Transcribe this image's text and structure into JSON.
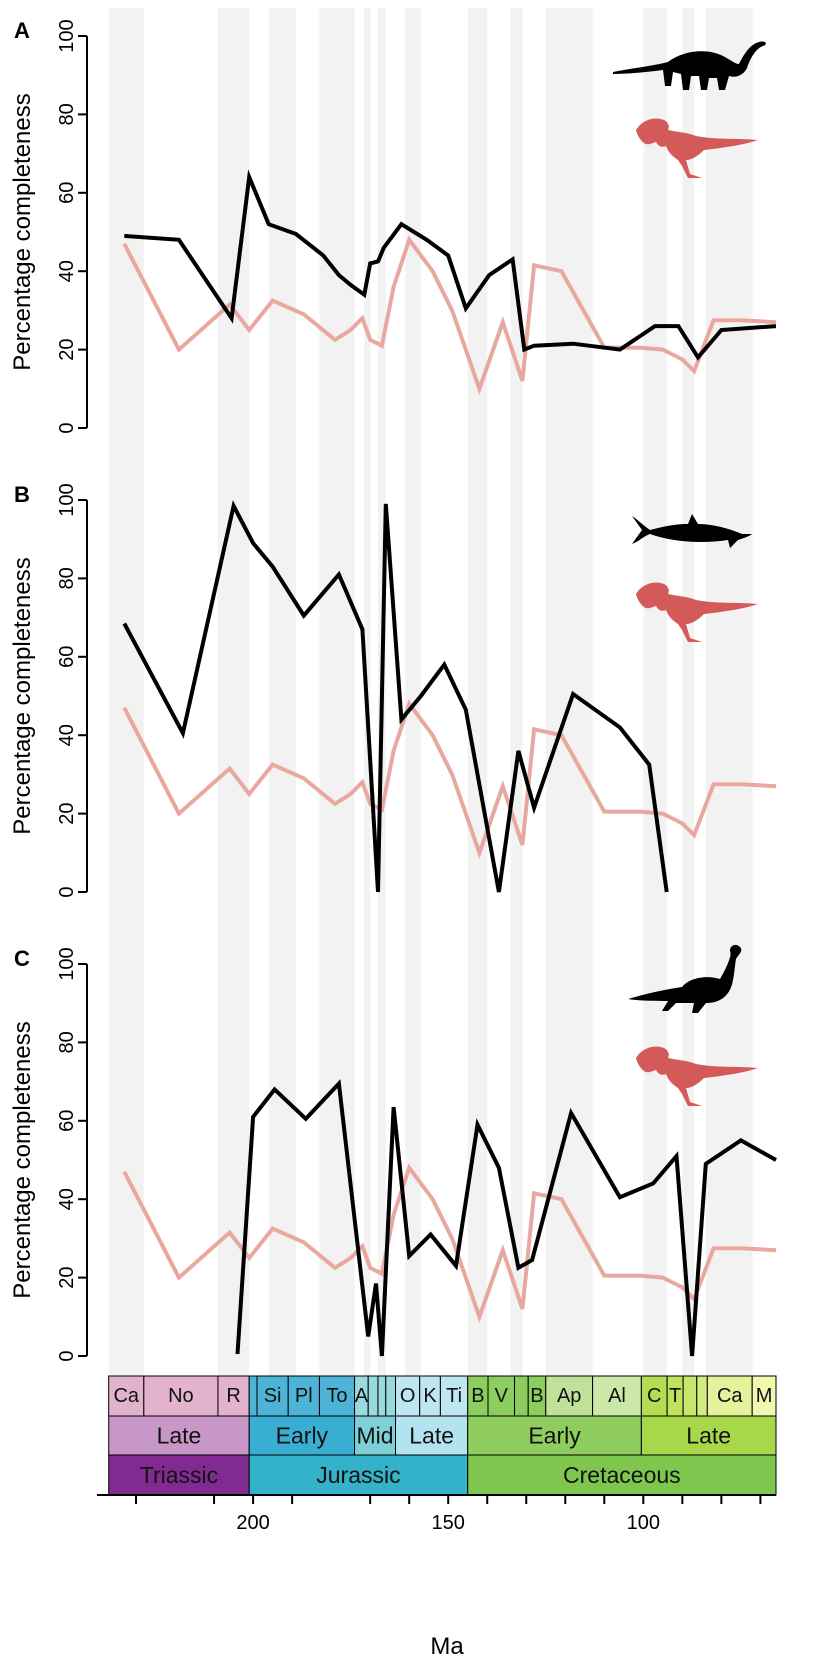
{
  "chart_data": [
    {
      "type": "line",
      "panel_label": "A",
      "ylabel": "Percentage completeness",
      "ylim": [
        0,
        100
      ],
      "yticks": [
        0,
        20,
        40,
        60,
        80,
        100
      ],
      "xlim": [
        240,
        66
      ],
      "series": [
        {
          "color": "#000000",
          "icon": "sauropod-silhouette-icon",
          "x": [
            233,
            219,
            205.5,
            201,
            196,
            189,
            182,
            178,
            175,
            171.5,
            170,
            168,
            166.5,
            162,
            155.5,
            150,
            145.5,
            139.5,
            133.5,
            130.5,
            128,
            118,
            106,
            97,
            91,
            86,
            80,
            66
          ],
          "y": [
            49,
            48,
            28,
            64,
            52,
            49.5,
            44,
            39,
            36.5,
            34,
            42,
            42.5,
            46,
            52,
            48,
            44,
            30.5,
            39,
            43,
            20,
            21,
            21.5,
            20,
            26,
            26,
            18,
            25,
            26
          ]
        },
        {
          "color": "#e8a8a0",
          "icon": "theropod-silhouette-icon",
          "x": [
            233,
            219,
            206,
            201,
            195,
            187,
            179,
            175,
            172,
            170,
            167,
            164,
            160,
            154,
            149,
            142,
            136,
            131,
            128,
            121,
            110,
            101,
            95,
            90,
            87,
            82,
            75,
            66
          ],
          "y": [
            47,
            20,
            31.5,
            25,
            32.5,
            29,
            22.5,
            25,
            28,
            22.5,
            21,
            36,
            48,
            40,
            30,
            10,
            27,
            12,
            41.5,
            40,
            20.5,
            20.5,
            20,
            17.5,
            14.5,
            27.5,
            27.5,
            27
          ]
        }
      ]
    },
    {
      "type": "line",
      "panel_label": "B",
      "ylabel": "Percentage completeness",
      "ylim": [
        0,
        100
      ],
      "yticks": [
        0,
        20,
        40,
        60,
        80,
        100
      ],
      "xlim": [
        240,
        66
      ],
      "series": [
        {
          "color": "#000000",
          "icon": "ichthyosaur-silhouette-icon",
          "x": [
            233,
            218,
            205,
            200,
            195,
            187,
            178,
            172,
            168,
            166,
            162,
            157,
            151,
            145.5,
            137,
            132,
            128,
            118,
            106,
            98.5,
            94
          ],
          "y": [
            68.5,
            40.5,
            98.5,
            89,
            83,
            70.5,
            81,
            67,
            0,
            99,
            44,
            50,
            58,
            46.5,
            0,
            36,
            21.5,
            50.5,
            42,
            32.5,
            0
          ]
        },
        {
          "color": "#e8a8a0",
          "icon": "theropod-silhouette-icon",
          "x": [
            233,
            219,
            206,
            201,
            195,
            187,
            179,
            175,
            172,
            170,
            167,
            164,
            160,
            154,
            149,
            142,
            136,
            131,
            128,
            121,
            110,
            101,
            95,
            90,
            87,
            82,
            75,
            66
          ],
          "y": [
            47,
            20,
            31.5,
            25,
            32.5,
            29,
            22.5,
            25,
            28,
            22.5,
            21,
            36,
            48,
            40,
            30,
            10,
            27,
            12,
            41.5,
            40,
            20.5,
            20.5,
            20,
            17.5,
            14.5,
            27.5,
            27.5,
            27
          ]
        }
      ]
    },
    {
      "type": "line",
      "panel_label": "C",
      "ylabel": "Percentage completeness",
      "ylim": [
        0,
        100
      ],
      "yticks": [
        0,
        20,
        40,
        60,
        80,
        100
      ],
      "xlim": [
        240,
        66
      ],
      "series": [
        {
          "color": "#000000",
          "icon": "plesiosaur-silhouette-icon",
          "x": [
            204,
            200,
            194.5,
            186.5,
            178,
            170.5,
            168.5,
            167,
            164,
            160,
            154.5,
            148,
            142.5,
            137,
            132,
            128.5,
            118.5,
            106,
            97.5,
            91.5,
            87.5,
            84,
            75,
            66
          ],
          "y": [
            0.5,
            61,
            68,
            60.5,
            69.5,
            5,
            18.5,
            0,
            63.5,
            25.5,
            31,
            23,
            59,
            48,
            22.5,
            24.5,
            62,
            40.5,
            44,
            51,
            0,
            49,
            55,
            50
          ]
        },
        {
          "color": "#e8a8a0",
          "icon": "theropod-silhouette-icon",
          "x": [
            233,
            219,
            206,
            201,
            195,
            187,
            179,
            175,
            172,
            170,
            167,
            164,
            160,
            154,
            149,
            142,
            136,
            131,
            128,
            121,
            110,
            101,
            95,
            90,
            87,
            82,
            75,
            66
          ],
          "y": [
            47,
            20,
            31.5,
            25,
            32.5,
            29,
            22.5,
            25,
            28,
            22.5,
            21,
            36,
            48,
            40,
            30,
            10,
            27,
            12,
            41.5,
            40,
            20.5,
            20.5,
            20,
            17.5,
            14.5,
            27.5,
            27.5,
            27
          ]
        }
      ]
    }
  ],
  "xaxis": {
    "title": "Ma",
    "ticks": [
      200,
      150,
      100
    ],
    "minor_ticks": [
      230,
      210,
      190,
      170,
      160,
      140,
      130,
      120,
      110,
      90,
      80,
      70
    ]
  },
  "background_bands": [
    [
      237,
      228
    ],
    [
      209,
      201
    ],
    [
      196,
      189
    ],
    [
      183,
      174
    ],
    [
      171.5,
      170
    ],
    [
      168,
      166
    ],
    [
      161,
      157
    ],
    [
      145,
      140
    ],
    [
      134,
      131
    ],
    [
      125,
      113
    ],
    [
      100,
      94
    ],
    [
      90,
      87
    ],
    [
      84,
      72
    ]
  ],
  "timescale": {
    "stages": [
      {
        "label": "Ca",
        "start": 237,
        "end": 228,
        "color": "#e3b3ce"
      },
      {
        "label": "No",
        "start": 228,
        "end": 209,
        "color": "#e3b3ce"
      },
      {
        "label": "R",
        "start": 209,
        "end": 201,
        "color": "#e3b3ce"
      },
      {
        "label": "",
        "start": 201,
        "end": 199,
        "color": "#4db4d7"
      },
      {
        "label": "Si",
        "start": 199,
        "end": 191,
        "color": "#4db4d7"
      },
      {
        "label": "Pl",
        "start": 191,
        "end": 183,
        "color": "#4db4d7"
      },
      {
        "label": "To",
        "start": 183,
        "end": 174,
        "color": "#4db4d7"
      },
      {
        "label": "A",
        "start": 174,
        "end": 170.5,
        "color": "#9ad9dd"
      },
      {
        "label": "",
        "start": 170.5,
        "end": 168,
        "color": "#9ad9dd"
      },
      {
        "label": "",
        "start": 168,
        "end": 166,
        "color": "#9ad9dd"
      },
      {
        "label": "",
        "start": 166,
        "end": 163.5,
        "color": "#9ad9dd"
      },
      {
        "label": "O",
        "start": 163.5,
        "end": 157.3,
        "color": "#bfe7f1"
      },
      {
        "label": "K",
        "start": 157.3,
        "end": 152,
        "color": "#bfe7f1"
      },
      {
        "label": "Ti",
        "start": 152,
        "end": 145,
        "color": "#bfe7f1"
      },
      {
        "label": "B",
        "start": 145,
        "end": 139.8,
        "color": "#8ccd60"
      },
      {
        "label": "V",
        "start": 139.8,
        "end": 133,
        "color": "#8ccd60"
      },
      {
        "label": "",
        "start": 133,
        "end": 129.5,
        "color": "#8ccd60"
      },
      {
        "label": "B",
        "start": 129.5,
        "end": 125,
        "color": "#8ccd60"
      },
      {
        "label": "Ap",
        "start": 125,
        "end": 113,
        "color": "#bfe29a"
      },
      {
        "label": "Al",
        "start": 113,
        "end": 100.5,
        "color": "#cce8a8"
      },
      {
        "label": "C",
        "start": 100.5,
        "end": 93.9,
        "color": "#b3de53"
      },
      {
        "label": "T",
        "start": 93.9,
        "end": 89.8,
        "color": "#bfe35d"
      },
      {
        "label": "",
        "start": 89.8,
        "end": 86.3,
        "color": "#c6e66d"
      },
      {
        "label": "",
        "start": 86.3,
        "end": 83.6,
        "color": "#d2ea80"
      },
      {
        "label": "Ca",
        "start": 83.6,
        "end": 72.1,
        "color": "#e6f19b"
      },
      {
        "label": "M",
        "start": 72.1,
        "end": 66,
        "color": "#f2f7b0"
      }
    ],
    "epochs": [
      {
        "label": "Late",
        "start": 237,
        "end": 201,
        "color": "#c996c8"
      },
      {
        "label": "Early",
        "start": 201,
        "end": 174,
        "color": "#38aed3"
      },
      {
        "label": "Mid",
        "start": 174,
        "end": 163.5,
        "color": "#7fcfd6"
      },
      {
        "label": "Late",
        "start": 163.5,
        "end": 145,
        "color": "#b3e3ee"
      },
      {
        "label": "Early",
        "start": 145,
        "end": 100.5,
        "color": "#8fcd5f"
      },
      {
        "label": "Late",
        "start": 100.5,
        "end": 66,
        "color": "#a6d84a"
      }
    ],
    "periods": [
      {
        "label": "Triassic",
        "start": 237,
        "end": 201,
        "color": "#812b92"
      },
      {
        "label": "Jurassic",
        "start": 201,
        "end": 145,
        "color": "#34b2c9"
      },
      {
        "label": "Cretaceous",
        "start": 145,
        "end": 66,
        "color": "#7fc64e"
      }
    ]
  }
}
